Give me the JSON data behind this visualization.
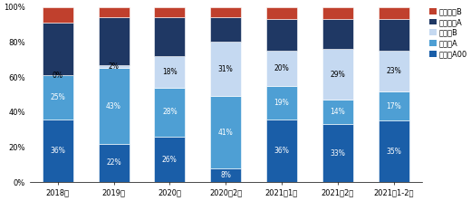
{
  "categories": [
    "2018年",
    "2019年",
    "2020年",
    "2020年2月",
    "2021年1月",
    "2021年2月",
    "2021年1-2月"
  ],
  "segments": [
    "纯电动A00",
    "纯电动A",
    "纯电动B",
    "插电混动A",
    "插电混动B"
  ],
  "values": [
    [
      36,
      25,
      0,
      30,
      9
    ],
    [
      22,
      43,
      2,
      27,
      6
    ],
    [
      26,
      28,
      18,
      22,
      6
    ],
    [
      8,
      41,
      31,
      14,
      6
    ],
    [
      36,
      19,
      20,
      18,
      7
    ],
    [
      33,
      14,
      29,
      17,
      7
    ],
    [
      35,
      17,
      23,
      18,
      7
    ]
  ],
  "labels": [
    [
      "36%",
      "25%",
      "0%",
      "",
      ""
    ],
    [
      "22%",
      "43%",
      "2%",
      "",
      ""
    ],
    [
      "26%",
      "28%",
      "18%",
      "",
      ""
    ],
    [
      "8%",
      "41%",
      "31%",
      "",
      ""
    ],
    [
      "36%",
      "19%",
      "20%",
      "",
      ""
    ],
    [
      "33%",
      "14%",
      "29%",
      "",
      ""
    ],
    [
      "35%",
      "17%",
      "23%",
      "",
      ""
    ]
  ],
  "colors": [
    "#1a5ea8",
    "#4e9fd4",
    "#c5d9f1",
    "#1f3864",
    "#c0402d"
  ],
  "label_colors": [
    "white",
    "white",
    "black",
    "white",
    "white"
  ],
  "background": "#ffffff",
  "yticks": [
    0,
    20,
    40,
    60,
    80,
    100
  ],
  "ytick_labels": [
    "0%",
    "20%",
    "40%",
    "60%",
    "80%",
    "100%"
  ],
  "bar_width": 0.55,
  "figsize": [
    5.2,
    2.22
  ],
  "dpi": 100,
  "label_fontsize": 5.5,
  "tick_fontsize": 6.0
}
